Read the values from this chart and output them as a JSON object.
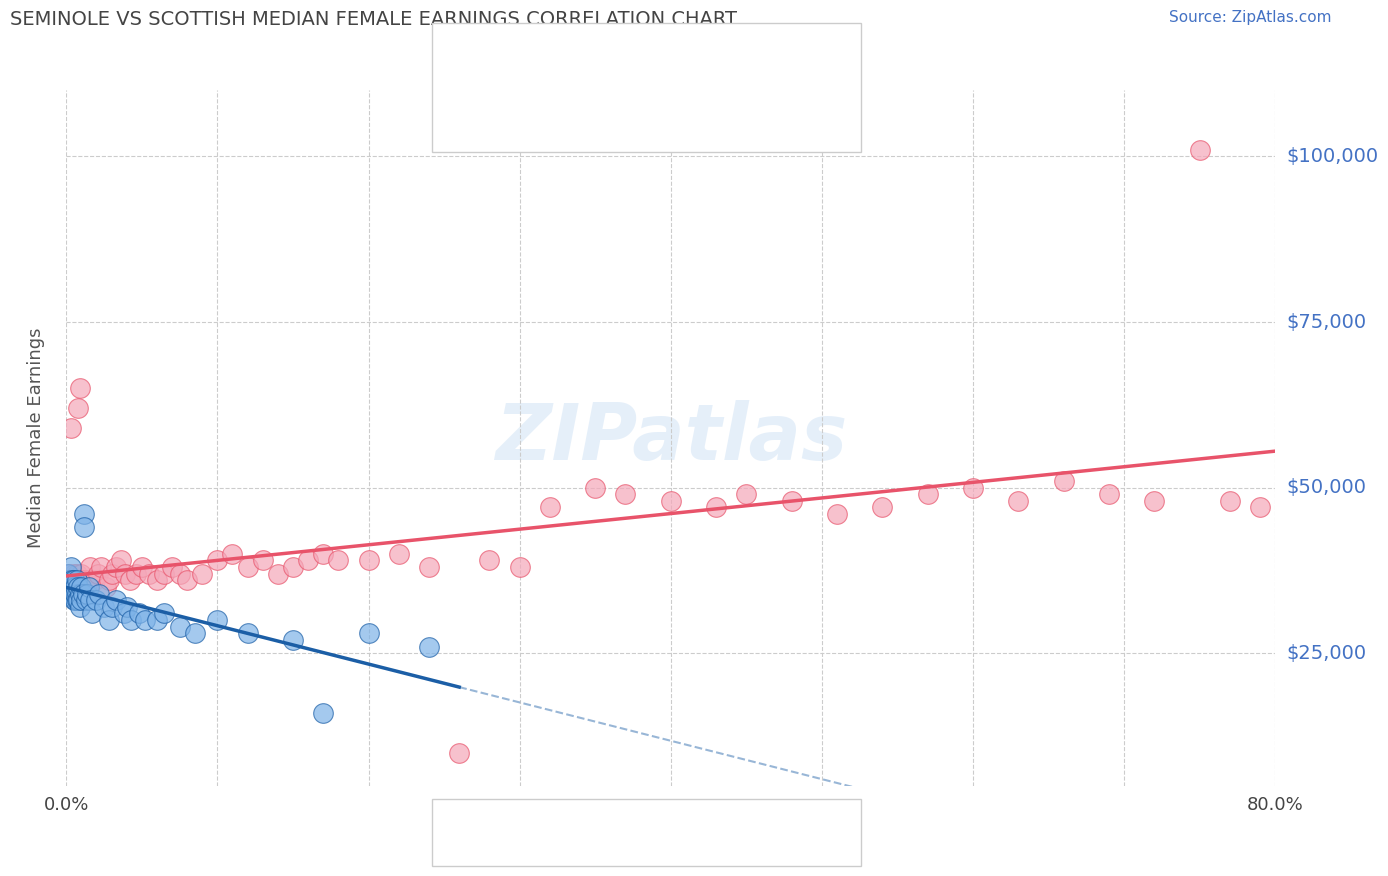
{
  "title": "SEMINOLE VS SCOTTISH MEDIAN FEMALE EARNINGS CORRELATION CHART",
  "source_text": "Source: ZipAtlas.com",
  "ylabel": "Median Female Earnings",
  "ytick_values": [
    25000,
    50000,
    75000,
    100000
  ],
  "color_seminole": "#7EB3E8",
  "color_scottish": "#F4A7B9",
  "color_seminole_line": "#1B5EA6",
  "color_scottish_line": "#E8536A",
  "color_title": "#444444",
  "color_source": "#4472C4",
  "color_ytick": "#4472C4",
  "color_grid": "#CCCCCC",
  "background_color": "#FFFFFF",
  "watermark_text": "ZIPatlas",
  "xmin": 0.0,
  "xmax": 0.8,
  "ymin": 5000,
  "ymax": 110000,
  "seminole_x": [
    0.001,
    0.002,
    0.002,
    0.003,
    0.003,
    0.003,
    0.004,
    0.004,
    0.004,
    0.005,
    0.005,
    0.005,
    0.005,
    0.006,
    0.006,
    0.006,
    0.007,
    0.007,
    0.007,
    0.008,
    0.008,
    0.009,
    0.009,
    0.01,
    0.01,
    0.011,
    0.012,
    0.012,
    0.013,
    0.014,
    0.015,
    0.016,
    0.017,
    0.02,
    0.022,
    0.025,
    0.028,
    0.03,
    0.033,
    0.038,
    0.04,
    0.043,
    0.048,
    0.052,
    0.06,
    0.065,
    0.075,
    0.085,
    0.1,
    0.12,
    0.15,
    0.17,
    0.2,
    0.24
  ],
  "seminole_y": [
    37000,
    35000,
    36000,
    34000,
    36000,
    38000,
    35000,
    34000,
    36000,
    35000,
    34000,
    33000,
    36000,
    35000,
    33000,
    34000,
    36000,
    34000,
    33000,
    35000,
    33000,
    34000,
    32000,
    35000,
    33000,
    34000,
    46000,
    44000,
    33000,
    34000,
    35000,
    33000,
    31000,
    33000,
    34000,
    32000,
    30000,
    32000,
    33000,
    31000,
    32000,
    30000,
    31000,
    30000,
    30000,
    31000,
    29000,
    28000,
    30000,
    28000,
    27000,
    16000,
    28000,
    26000
  ],
  "scottish_x": [
    0.001,
    0.002,
    0.002,
    0.003,
    0.003,
    0.004,
    0.004,
    0.005,
    0.005,
    0.006,
    0.006,
    0.007,
    0.007,
    0.008,
    0.008,
    0.009,
    0.01,
    0.01,
    0.011,
    0.012,
    0.013,
    0.014,
    0.015,
    0.016,
    0.018,
    0.019,
    0.021,
    0.023,
    0.026,
    0.028,
    0.03,
    0.033,
    0.036,
    0.039,
    0.042,
    0.046,
    0.05,
    0.055,
    0.06,
    0.065,
    0.07,
    0.075,
    0.08,
    0.09,
    0.1,
    0.11,
    0.12,
    0.13,
    0.14,
    0.15,
    0.16,
    0.17,
    0.18,
    0.2,
    0.22,
    0.24,
    0.26,
    0.28,
    0.3,
    0.32,
    0.35,
    0.37,
    0.4,
    0.43,
    0.45,
    0.48,
    0.51,
    0.54,
    0.57,
    0.6,
    0.63,
    0.66,
    0.69,
    0.72,
    0.75,
    0.77,
    0.79
  ],
  "scottish_y": [
    36000,
    35000,
    37000,
    34000,
    59000,
    36000,
    35000,
    37000,
    36000,
    35000,
    34000,
    37000,
    35000,
    62000,
    36000,
    65000,
    37000,
    36000,
    35000,
    36000,
    35000,
    34000,
    36000,
    38000,
    36000,
    36000,
    37000,
    38000,
    35000,
    36000,
    37000,
    38000,
    39000,
    37000,
    36000,
    37000,
    38000,
    37000,
    36000,
    37000,
    38000,
    37000,
    36000,
    37000,
    39000,
    40000,
    38000,
    39000,
    37000,
    38000,
    39000,
    40000,
    39000,
    39000,
    40000,
    38000,
    10000,
    39000,
    38000,
    47000,
    50000,
    49000,
    48000,
    47000,
    49000,
    48000,
    46000,
    47000,
    49000,
    50000,
    48000,
    51000,
    49000,
    48000,
    101000,
    48000,
    47000
  ]
}
